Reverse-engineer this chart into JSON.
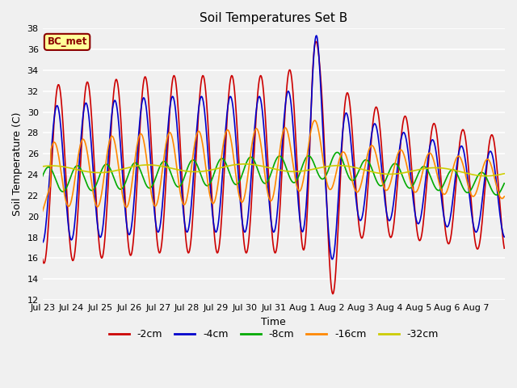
{
  "title": "Soil Temperatures Set B",
  "xlabel": "Time",
  "ylabel": "Soil Temperature (C)",
  "ylim": [
    12,
    38
  ],
  "yticks": [
    12,
    14,
    16,
    18,
    20,
    22,
    24,
    26,
    28,
    30,
    32,
    34,
    36,
    38
  ],
  "annotation": "BC_met",
  "bg_color": "#f0f0f0",
  "colors": {
    "-2cm": "#cc0000",
    "-4cm": "#0000cc",
    "-8cm": "#00aa00",
    "-16cm": "#ff8800",
    "-32cm": "#cccc00"
  },
  "x_tick_labels": [
    "Jul 23",
    "Jul 24",
    "Jul 25",
    "Jul 26",
    "Jul 27",
    "Jul 28",
    "Jul 29",
    "Jul 30",
    "Jul 31",
    "Aug 1",
    "Aug 2",
    "Aug 3",
    "Aug 4",
    "Aug 5",
    "Aug 6",
    "Aug 7"
  ],
  "num_days": 16,
  "pts_per_day": 48
}
